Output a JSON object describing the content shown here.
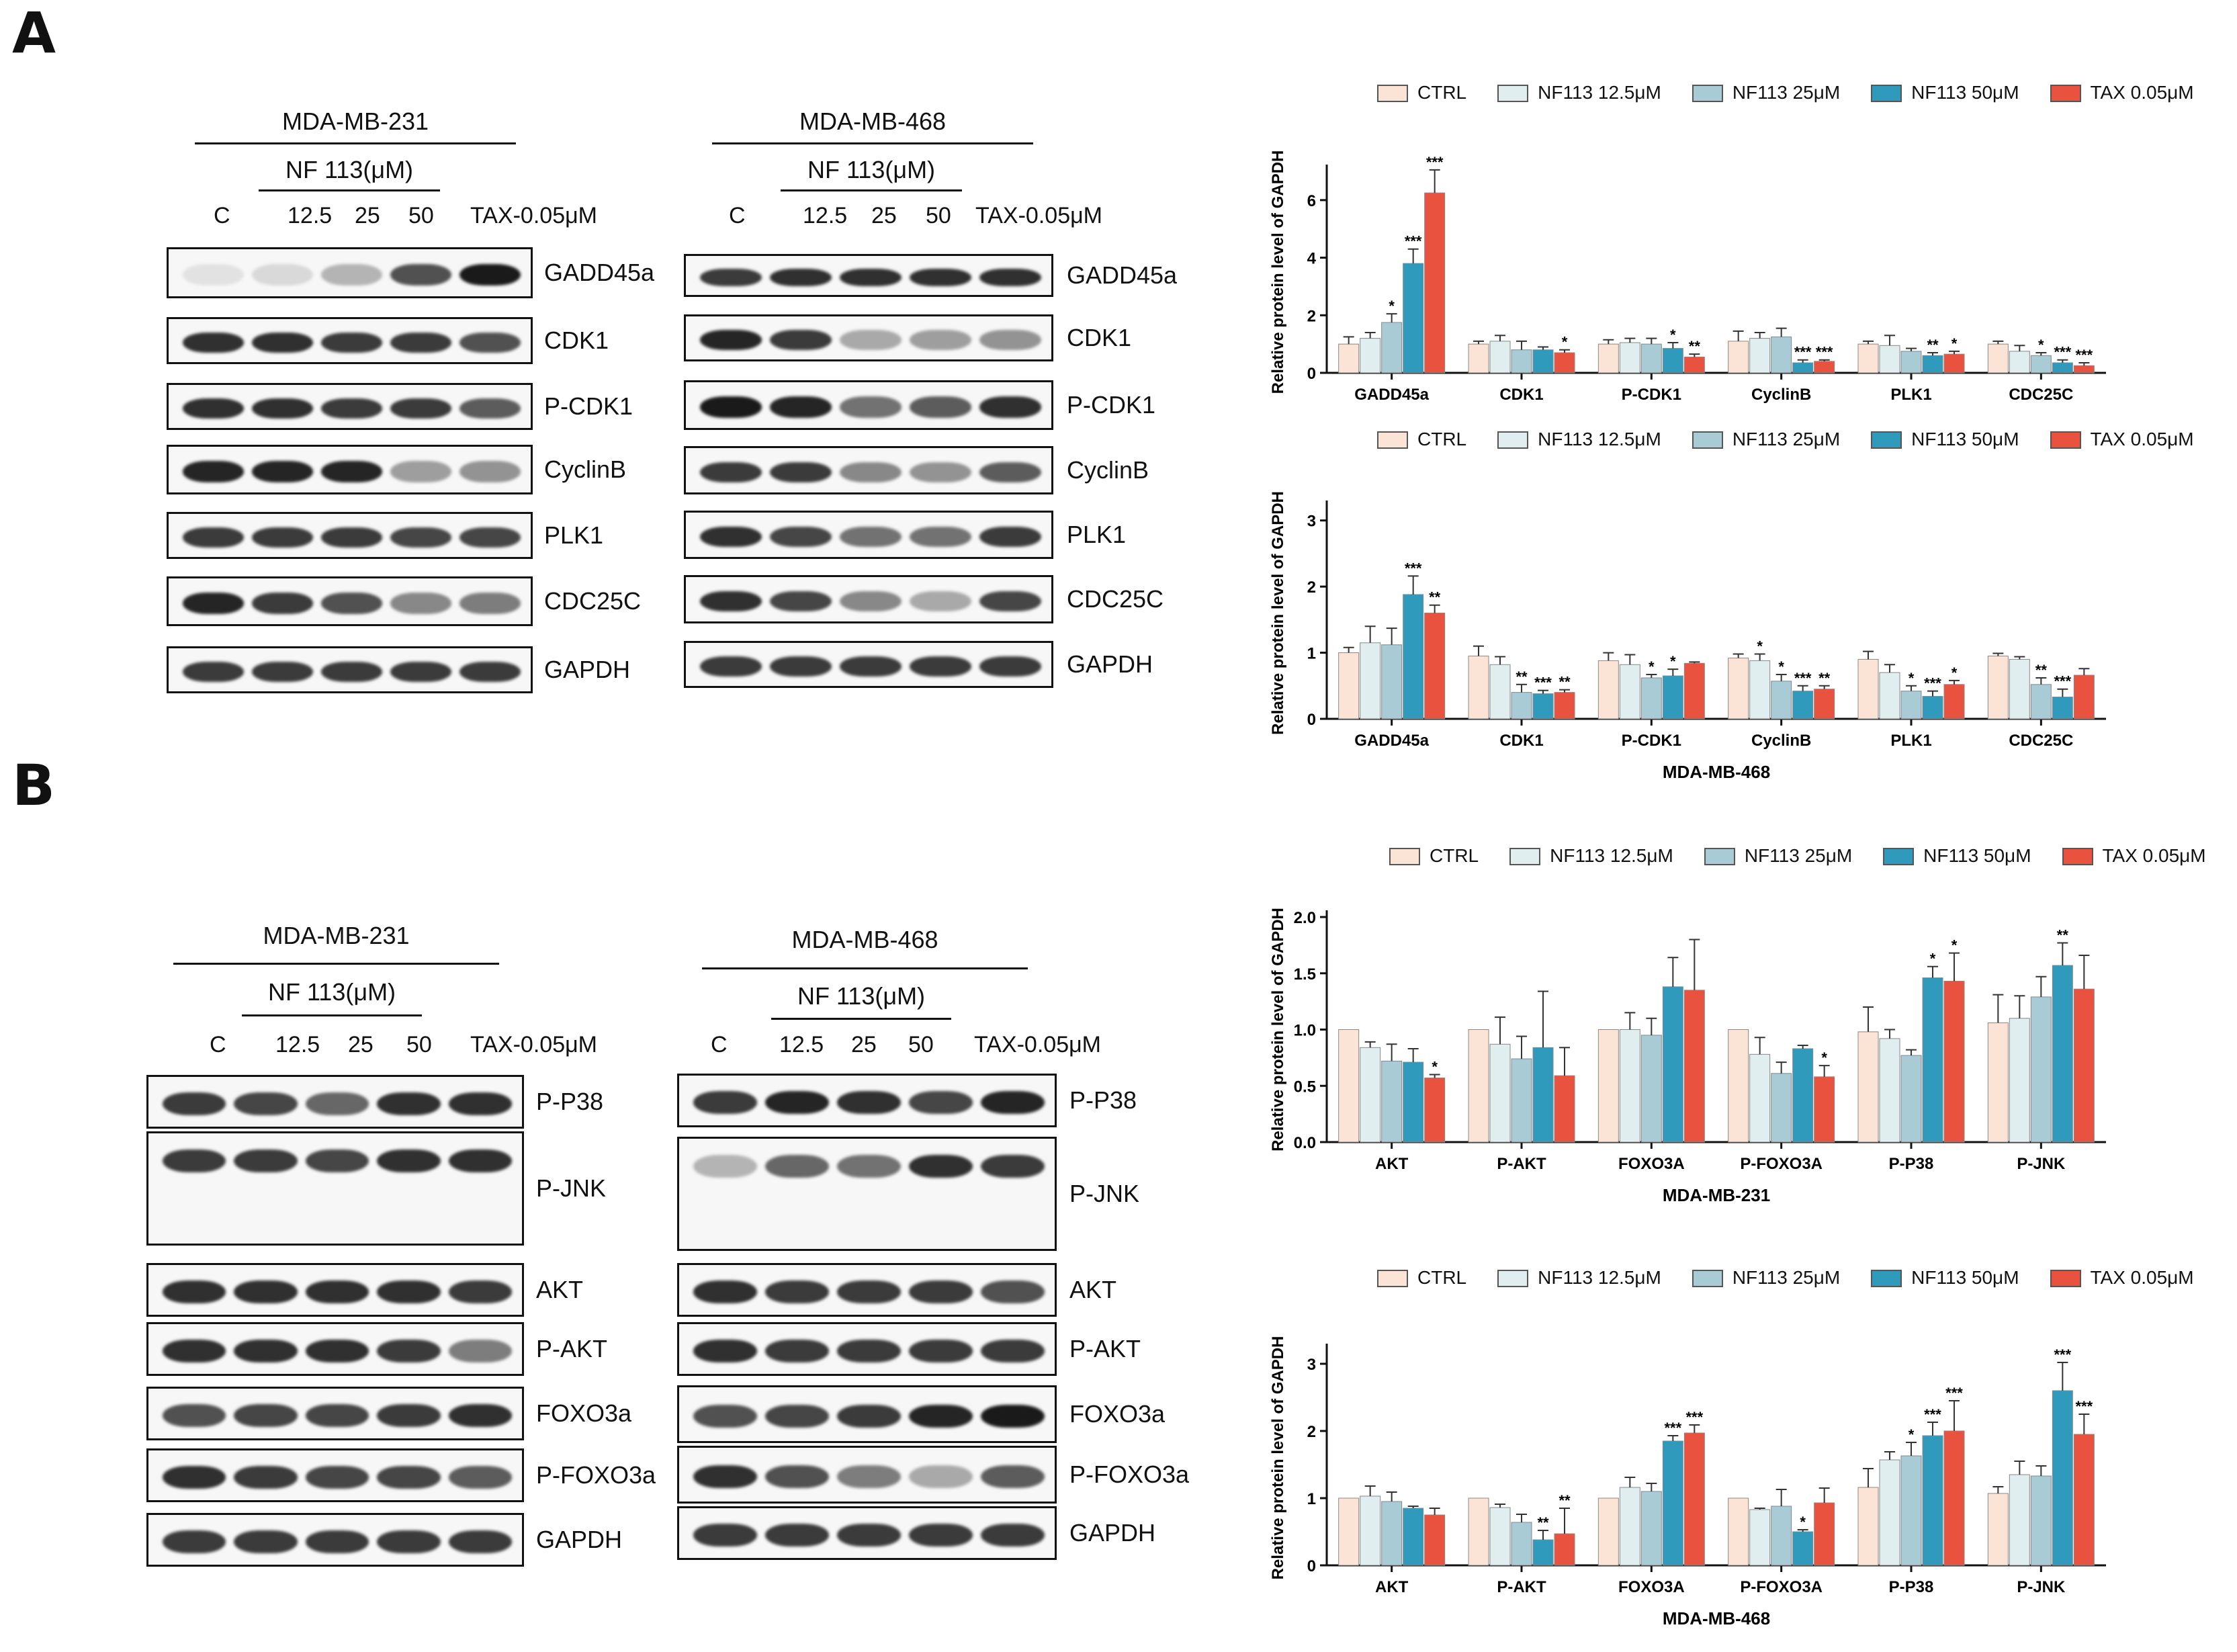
{
  "panels": {
    "A": "A",
    "B": "B"
  },
  "treatment_label": "NF 113(μM)",
  "lanes": [
    "C",
    "12.5",
    "25",
    "50",
    "TAX-0.05μM"
  ],
  "blots": {
    "A_231": {
      "cell": "MDA-MB-231",
      "proteins": [
        "GADD45a",
        "CDK1",
        "P-CDK1",
        "CyclinB",
        "PLK1",
        "CDC25C",
        "GAPDH"
      ]
    },
    "A_468": {
      "cell": "MDA-MB-468",
      "proteins": [
        "GADD45a",
        "CDK1",
        "P-CDK1",
        "CyclinB",
        "PLK1",
        "CDC25C",
        "GAPDH"
      ]
    },
    "B_231": {
      "cell": "MDA-MB-231",
      "proteins": [
        "P-P38",
        "P-JNK",
        "AKT",
        "P-AKT",
        "FOXO3a",
        "P-FOXO3a",
        "GAPDH"
      ]
    },
    "B_468": {
      "cell": "MDA-MB-468",
      "proteins": [
        "P-P38",
        "P-JNK",
        "AKT",
        "P-AKT",
        "FOXO3a",
        "P-FOXO3a",
        "GAPDH"
      ]
    }
  },
  "legend": [
    "CTRL",
    "NF113 12.5μM",
    "NF113 25μM",
    "NF113 50μM",
    "TAX 0.05μM"
  ],
  "colors": {
    "CTRL": "#fbe3d6",
    "NF113 12.5μM": "#e0eef0",
    "NF113 25μM": "#a9cbd6",
    "NF113 50μM": "#2f9abb",
    "TAX 0.05μM": "#e8523f"
  },
  "chart_data": [
    {
      "id": "A_231",
      "type": "bar",
      "title": "",
      "ylabel": "Relative protein level of GAPDH",
      "xlabel": "",
      "ylim": [
        0,
        7
      ],
      "yticks": [
        0,
        2,
        4,
        6
      ],
      "categories": [
        "GADD45a",
        "CDK1",
        "P-CDK1",
        "CyclinB",
        "PLK1",
        "CDC25C"
      ],
      "series": [
        {
          "name": "CTRL",
          "values": [
            1.0,
            1.0,
            1.0,
            1.1,
            1.0,
            1.0
          ],
          "errors": [
            0.25,
            0.1,
            0.15,
            0.35,
            0.1,
            0.1
          ]
        },
        {
          "name": "NF113 12.5μM",
          "values": [
            1.2,
            1.1,
            1.05,
            1.2,
            0.95,
            0.75
          ],
          "errors": [
            0.2,
            0.2,
            0.15,
            0.2,
            0.35,
            0.2
          ]
        },
        {
          "name": "NF113 25μM",
          "values": [
            1.75,
            0.8,
            1.0,
            1.25,
            0.75,
            0.6
          ],
          "errors": [
            0.3,
            0.3,
            0.2,
            0.3,
            0.1,
            0.1
          ]
        },
        {
          "name": "NF113 50μM",
          "values": [
            3.8,
            0.8,
            0.85,
            0.35,
            0.6,
            0.35
          ],
          "errors": [
            0.5,
            0.1,
            0.2,
            0.1,
            0.1,
            0.1
          ]
        },
        {
          "name": "TAX 0.05μM",
          "values": [
            6.25,
            0.7,
            0.55,
            0.4,
            0.65,
            0.25
          ],
          "errors": [
            0.8,
            0.1,
            0.1,
            0.05,
            0.1,
            0.1
          ]
        }
      ],
      "annotations": [
        {
          "cat": 0,
          "series": 2,
          "text": "*"
        },
        {
          "cat": 0,
          "series": 3,
          "text": "***"
        },
        {
          "cat": 0,
          "series": 4,
          "text": "***"
        },
        {
          "cat": 1,
          "series": 4,
          "text": "*"
        },
        {
          "cat": 2,
          "series": 3,
          "text": "*"
        },
        {
          "cat": 2,
          "series": 4,
          "text": "**"
        },
        {
          "cat": 3,
          "series": 3,
          "text": "***"
        },
        {
          "cat": 3,
          "series": 4,
          "text": "***"
        },
        {
          "cat": 4,
          "series": 3,
          "text": "**"
        },
        {
          "cat": 4,
          "series": 4,
          "text": "*"
        },
        {
          "cat": 5,
          "series": 2,
          "text": "*"
        },
        {
          "cat": 5,
          "series": 3,
          "text": "***"
        },
        {
          "cat": 5,
          "series": 4,
          "text": "***"
        }
      ]
    },
    {
      "id": "A_468",
      "type": "bar",
      "title": "",
      "ylabel": "Relative protein level of GAPDH",
      "xlabel": "MDA-MB-468",
      "ylim": [
        0,
        3.2
      ],
      "yticks": [
        0,
        1,
        2,
        3
      ],
      "categories": [
        "GADD45a",
        "CDK1",
        "P-CDK1",
        "CyclinB",
        "PLK1",
        "CDC25C"
      ],
      "series": [
        {
          "name": "CTRL",
          "values": [
            1.0,
            0.95,
            0.88,
            0.92,
            0.9,
            0.95
          ],
          "errors": [
            0.08,
            0.15,
            0.12,
            0.06,
            0.12,
            0.04
          ]
        },
        {
          "name": "NF113 12.5μM",
          "values": [
            1.15,
            0.82,
            0.82,
            0.88,
            0.7,
            0.9
          ],
          "errors": [
            0.25,
            0.12,
            0.15,
            0.1,
            0.12,
            0.04
          ]
        },
        {
          "name": "NF113 25μM",
          "values": [
            1.12,
            0.4,
            0.62,
            0.57,
            0.42,
            0.52
          ],
          "errors": [
            0.25,
            0.12,
            0.05,
            0.1,
            0.08,
            0.1
          ]
        },
        {
          "name": "NF113 50μM",
          "values": [
            1.88,
            0.38,
            0.65,
            0.42,
            0.34,
            0.33
          ],
          "errors": [
            0.28,
            0.05,
            0.1,
            0.08,
            0.08,
            0.12
          ]
        },
        {
          "name": "TAX 0.05μM",
          "values": [
            1.6,
            0.4,
            0.84,
            0.45,
            0.52,
            0.66
          ],
          "errors": [
            0.12,
            0.04,
            0.02,
            0.05,
            0.06,
            0.1
          ]
        }
      ],
      "annotations": [
        {
          "cat": 0,
          "series": 3,
          "text": "***"
        },
        {
          "cat": 0,
          "series": 4,
          "text": "**"
        },
        {
          "cat": 1,
          "series": 2,
          "text": "**"
        },
        {
          "cat": 1,
          "series": 3,
          "text": "***"
        },
        {
          "cat": 1,
          "series": 4,
          "text": "**"
        },
        {
          "cat": 2,
          "series": 2,
          "text": "*"
        },
        {
          "cat": 2,
          "series": 3,
          "text": "*"
        },
        {
          "cat": 3,
          "series": 1,
          "text": "*"
        },
        {
          "cat": 3,
          "series": 2,
          "text": "*"
        },
        {
          "cat": 3,
          "series": 3,
          "text": "***"
        },
        {
          "cat": 3,
          "series": 4,
          "text": "**"
        },
        {
          "cat": 4,
          "series": 2,
          "text": "*"
        },
        {
          "cat": 4,
          "series": 3,
          "text": "***"
        },
        {
          "cat": 4,
          "series": 4,
          "text": "*"
        },
        {
          "cat": 5,
          "series": 2,
          "text": "**"
        },
        {
          "cat": 5,
          "series": 3,
          "text": "***"
        }
      ]
    },
    {
      "id": "B_231",
      "type": "bar",
      "title": "",
      "ylabel": "Relative protein level of GAPDH",
      "xlabel": "MDA-MB-231",
      "ylim": [
        0,
        2.0
      ],
      "yticks": [
        "0.0",
        "0.5",
        "1.0",
        "1.5",
        "2.0"
      ],
      "categories": [
        "AKT",
        "P-AKT",
        "FOXO3A",
        "P-FOXO3A",
        "P-P38",
        "P-JNK"
      ],
      "series": [
        {
          "name": "CTRL",
          "values": [
            1.0,
            1.0,
            1.0,
            1.0,
            0.98,
            1.06
          ],
          "errors": [
            0.0,
            0.0,
            0.0,
            0.0,
            0.22,
            0.25
          ]
        },
        {
          "name": "NF113 12.5μM",
          "values": [
            0.84,
            0.87,
            1.0,
            0.78,
            0.92,
            1.1
          ],
          "errors": [
            0.05,
            0.24,
            0.15,
            0.15,
            0.08,
            0.2
          ]
        },
        {
          "name": "NF113 25μM",
          "values": [
            0.72,
            0.74,
            0.95,
            0.61,
            0.77,
            1.29
          ],
          "errors": [
            0.15,
            0.2,
            0.15,
            0.1,
            0.05,
            0.18
          ]
        },
        {
          "name": "NF113 50μM",
          "values": [
            0.71,
            0.84,
            1.38,
            0.83,
            1.46,
            1.57
          ],
          "errors": [
            0.12,
            0.5,
            0.26,
            0.03,
            0.1,
            0.2
          ]
        },
        {
          "name": "TAX 0.05μM",
          "values": [
            0.57,
            0.59,
            1.35,
            0.58,
            1.43,
            1.36
          ],
          "errors": [
            0.03,
            0.25,
            0.45,
            0.1,
            0.25,
            0.3
          ]
        }
      ],
      "annotations": [
        {
          "cat": 0,
          "series": 4,
          "text": "*"
        },
        {
          "cat": 3,
          "series": 4,
          "text": "*"
        },
        {
          "cat": 4,
          "series": 3,
          "text": "*"
        },
        {
          "cat": 4,
          "series": 4,
          "text": "*"
        },
        {
          "cat": 5,
          "series": 3,
          "text": "**"
        }
      ]
    },
    {
      "id": "B_468",
      "type": "bar",
      "title": "",
      "ylabel": "Relative protein level of GAPDH",
      "xlabel": "MDA-MB-468",
      "ylim": [
        0,
        3.2
      ],
      "yticks": [
        0,
        1,
        2,
        3
      ],
      "categories": [
        "AKT",
        "P-AKT",
        "FOXO3A",
        "P-FOXO3A",
        "P-P38",
        "P-JNK"
      ],
      "series": [
        {
          "name": "CTRL",
          "values": [
            1.0,
            1.0,
            1.0,
            1.0,
            1.16,
            1.07
          ],
          "errors": [
            0.0,
            0.0,
            0.0,
            0.0,
            0.28,
            0.1
          ]
        },
        {
          "name": "NF113 12.5μM",
          "values": [
            1.03,
            0.86,
            1.16,
            0.83,
            1.57,
            1.35
          ],
          "errors": [
            0.15,
            0.05,
            0.15,
            0.02,
            0.12,
            0.2
          ]
        },
        {
          "name": "NF113 25μM",
          "values": [
            0.95,
            0.64,
            1.1,
            0.88,
            1.63,
            1.33
          ],
          "errors": [
            0.14,
            0.12,
            0.12,
            0.25,
            0.2,
            0.15
          ]
        },
        {
          "name": "NF113 50μM",
          "values": [
            0.85,
            0.38,
            1.85,
            0.5,
            1.93,
            2.6
          ],
          "errors": [
            0.03,
            0.14,
            0.08,
            0.03,
            0.2,
            0.42
          ]
        },
        {
          "name": "TAX 0.05μM",
          "values": [
            0.75,
            0.47,
            1.97,
            0.93,
            2.0,
            1.95
          ],
          "errors": [
            0.1,
            0.38,
            0.12,
            0.22,
            0.45,
            0.3
          ]
        }
      ],
      "annotations": [
        {
          "cat": 1,
          "series": 3,
          "text": "**"
        },
        {
          "cat": 1,
          "series": 4,
          "text": "**"
        },
        {
          "cat": 2,
          "series": 3,
          "text": "***"
        },
        {
          "cat": 2,
          "series": 4,
          "text": "***"
        },
        {
          "cat": 3,
          "series": 3,
          "text": "*"
        },
        {
          "cat": 4,
          "series": 2,
          "text": "*"
        },
        {
          "cat": 4,
          "series": 3,
          "text": "***"
        },
        {
          "cat": 4,
          "series": 4,
          "text": "***"
        },
        {
          "cat": 5,
          "series": 3,
          "text": "***"
        },
        {
          "cat": 5,
          "series": 4,
          "text": "***"
        }
      ]
    }
  ]
}
